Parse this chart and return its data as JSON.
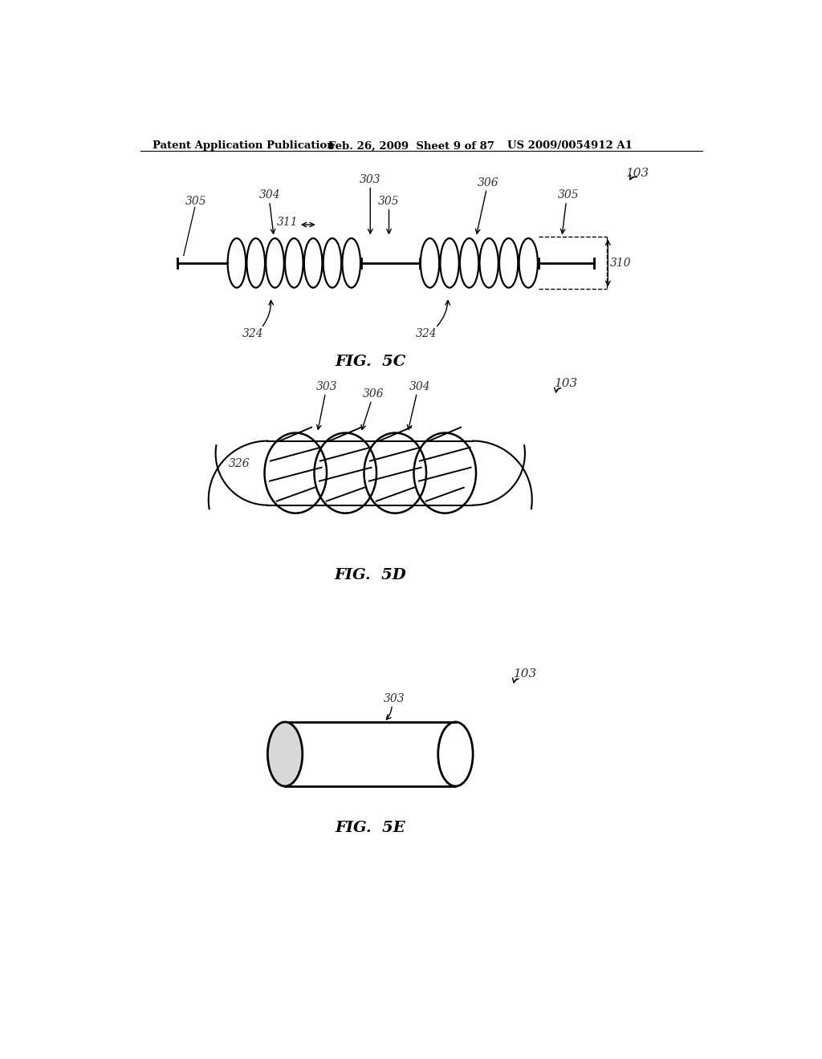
{
  "header_left": "Patent Application Publication",
  "header_mid": "Feb. 26, 2009  Sheet 9 of 87",
  "header_right": "US 2009/0054912 A1",
  "fig5c_label": "FIG.  5C",
  "fig5d_label": "FIG.  5D",
  "fig5e_label": "FIG.  5E",
  "bg_color": "#ffffff",
  "line_color": "#000000"
}
